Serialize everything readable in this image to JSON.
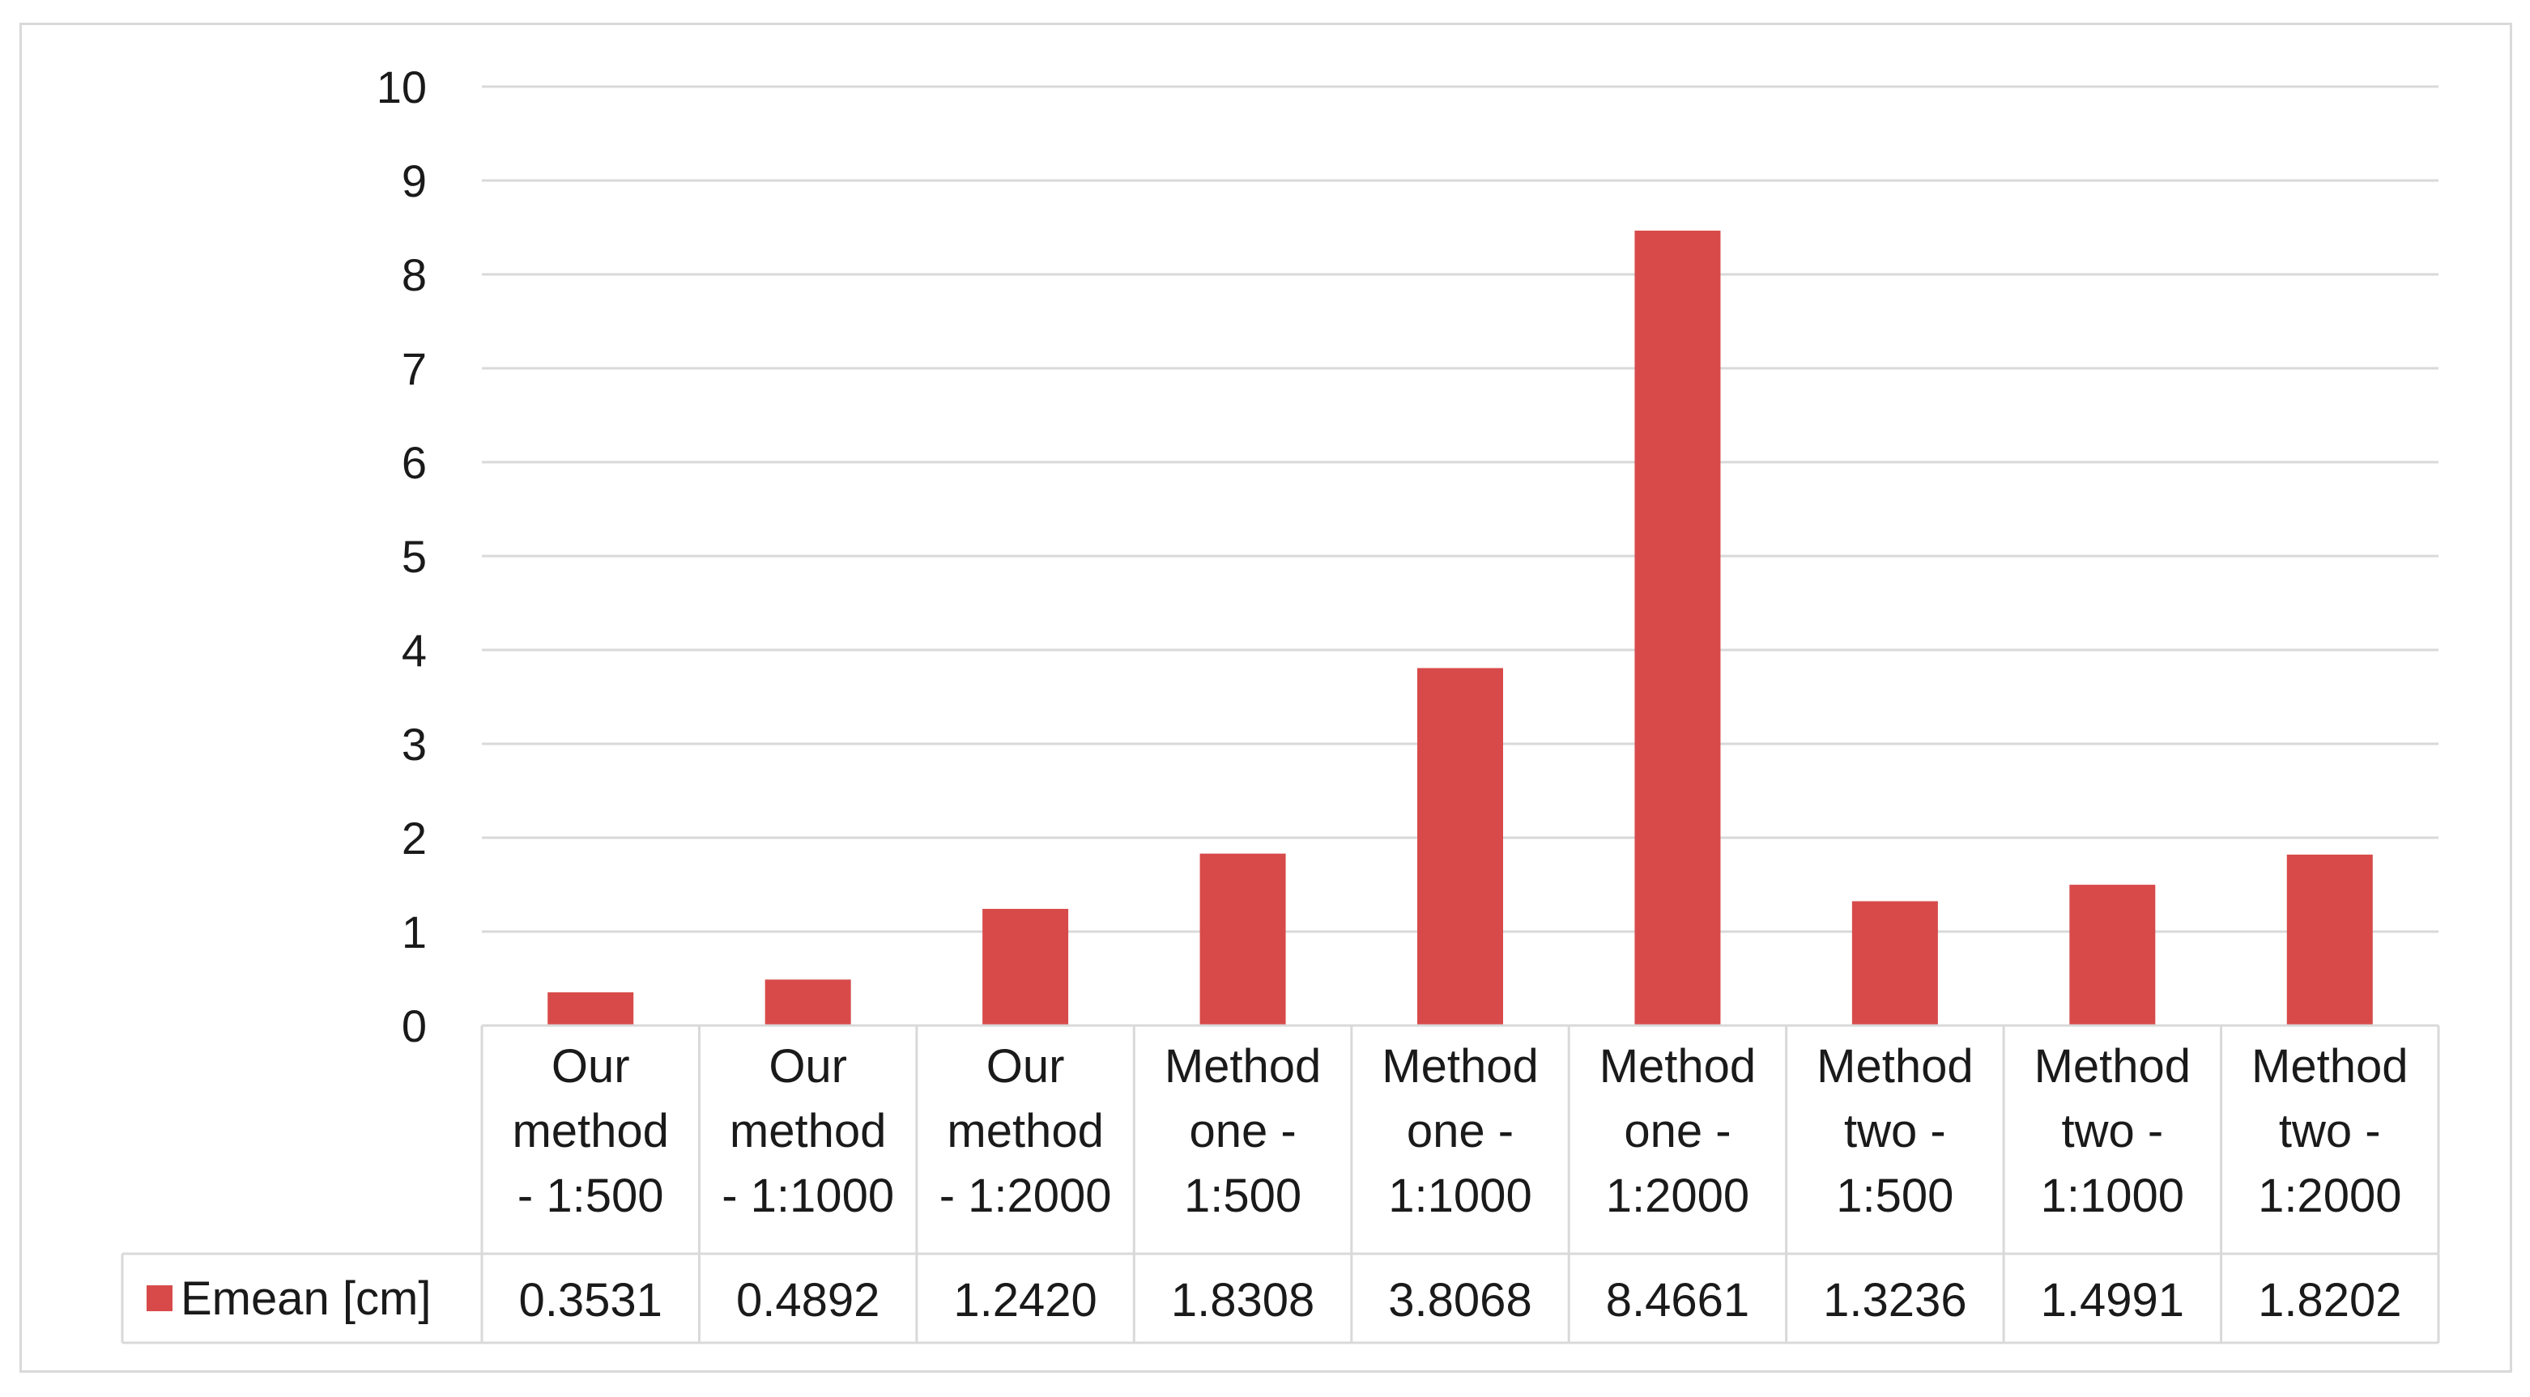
{
  "chart_data": {
    "type": "bar",
    "categories": [
      [
        "Our",
        "method",
        "- 1:500"
      ],
      [
        "Our",
        "method",
        "- 1:1000"
      ],
      [
        "Our",
        "method",
        "- 1:2000"
      ],
      [
        "Method",
        "one -",
        "1:500"
      ],
      [
        "Method",
        "one -",
        "1:1000"
      ],
      [
        "Method",
        "one -",
        "1:2000"
      ],
      [
        "Method",
        "two -",
        "1:500"
      ],
      [
        "Method",
        "two -",
        "1:1000"
      ],
      [
        "Method",
        "two -",
        "1:2000"
      ]
    ],
    "series": [
      {
        "name": "Emean [cm]",
        "values": [
          0.3531,
          0.4892,
          1.242,
          1.8308,
          3.8068,
          8.4661,
          1.3236,
          1.4991,
          1.8202
        ],
        "value_labels": [
          "0.3531",
          "0.4892",
          "1.2420",
          "1.8308",
          "3.8068",
          "8.4661",
          "1.3236",
          "1.4991",
          "1.8202"
        ],
        "color": "#d84a4a"
      }
    ],
    "yticks": [
      "0",
      "1",
      "2",
      "3",
      "4",
      "5",
      "6",
      "7",
      "8",
      "9",
      "10"
    ],
    "ylim": [
      0,
      10
    ],
    "grid": true,
    "legend": "data-table",
    "title": "",
    "xlabel": "",
    "ylabel": ""
  }
}
